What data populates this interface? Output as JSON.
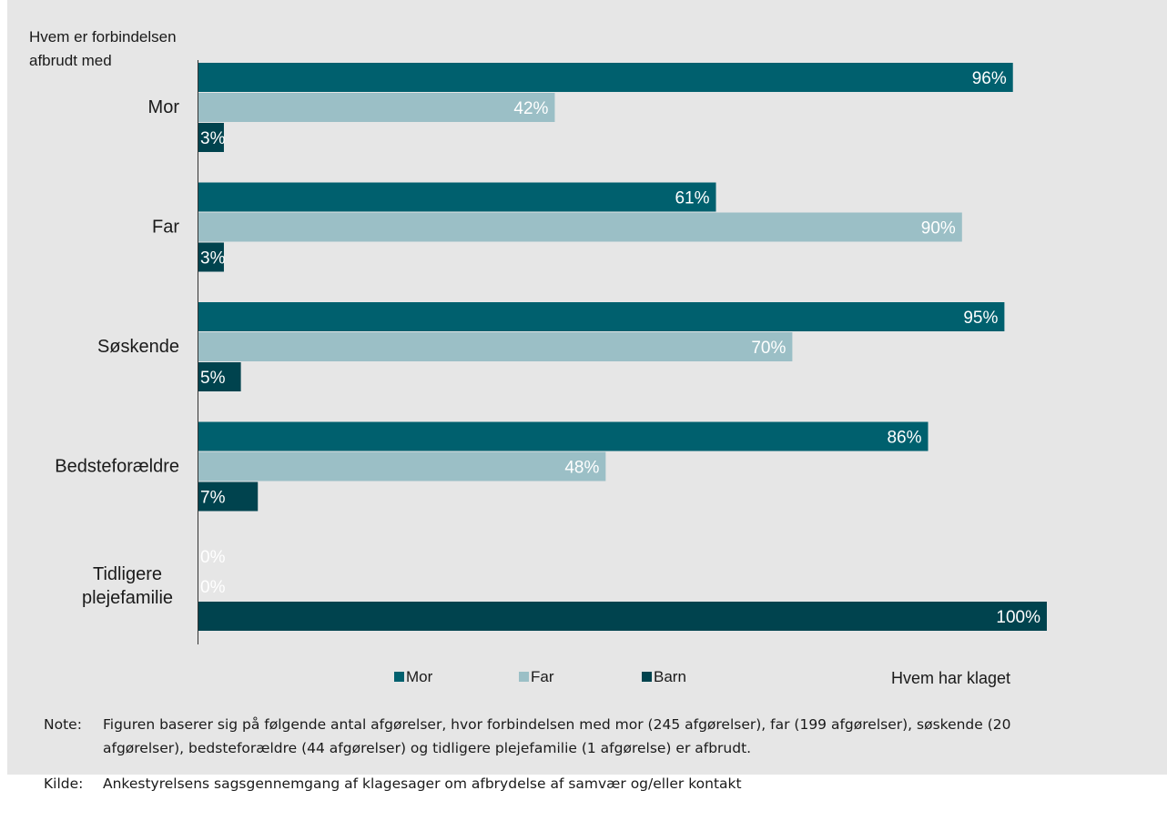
{
  "chart_data": {
    "type": "bar",
    "orientation": "horizontal",
    "y_axis_title": "Hvem er forbindelsen afbrudt med",
    "x_axis_title": "Hvem har klaget",
    "categories": [
      "Mor",
      "Far",
      "Søskende",
      "Bedsteforældre",
      "Tidligere plejefamilie"
    ],
    "series": [
      {
        "name": "Mor",
        "color": "#00606e",
        "values": [
          96,
          61,
          95,
          86,
          0
        ],
        "labels": [
          "96%",
          "61%",
          "95%",
          "86%",
          "0%"
        ]
      },
      {
        "name": "Far",
        "color": "#9bbfc6",
        "values": [
          42,
          90,
          70,
          48,
          0
        ],
        "labels": [
          "42%",
          "90%",
          "70%",
          "48%",
          "0%"
        ]
      },
      {
        "name": "Barn",
        "color": "#00434e",
        "values": [
          3,
          3,
          5,
          7,
          100
        ],
        "labels": [
          "3%",
          "3%",
          "5%",
          "7%",
          "100%"
        ]
      }
    ],
    "xlim": [
      0,
      100
    ],
    "grid": false,
    "legend_position": "bottom"
  },
  "notes": [
    {
      "label": "Note:",
      "text": "Figuren baserer sig på følgende antal afgørelser, hvor forbindelsen med mor (245 afgørelser), far (199 afgørelser), søskende (20 afgørelser), bedsteforældre (44 afgørelser) og tidligere plejefamilie (1 afgørelse) er afbrudt."
    },
    {
      "label": "Kilde:",
      "text": "Ankestyrelsens sagsgennemgang af klagesager om afbrydelse af samvær og/eller kontakt"
    }
  ]
}
